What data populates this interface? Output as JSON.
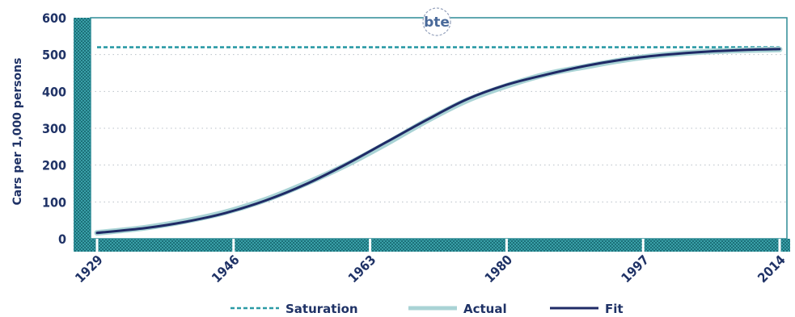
{
  "chart_data": {
    "type": "line",
    "ylabel": "Cars per 1,000 persons",
    "ylim": [
      0,
      600
    ],
    "yticks": [
      0,
      100,
      200,
      300,
      400,
      500,
      600
    ],
    "xlim": [
      1929,
      2014
    ],
    "xticks": [
      1929,
      1946,
      1963,
      1980,
      1997,
      2014
    ],
    "grid": true,
    "legend_position": "bottom",
    "logo_text": "bte",
    "series": [
      {
        "name": "Saturation",
        "color": "#2a9aa5",
        "style": "dashed",
        "x": [
          1929,
          2014
        ],
        "y": [
          520,
          520
        ]
      },
      {
        "name": "Actual",
        "color": "#a9d3d5",
        "style": "solid-wide",
        "x": [
          1929,
          1935,
          1940,
          1945,
          1950,
          1955,
          1960,
          1965,
          1970,
          1975,
          1980,
          1985,
          1990,
          1995,
          2000,
          2005,
          2010,
          2014
        ],
        "y": [
          16,
          30,
          48,
          72,
          106,
          150,
          200,
          258,
          320,
          375,
          415,
          447,
          468,
          487,
          500,
          508,
          512,
          514
        ]
      },
      {
        "name": "Fit",
        "color": "#1f2a66",
        "style": "solid",
        "x": [
          1929,
          1935,
          1940,
          1945,
          1950,
          1955,
          1960,
          1965,
          1970,
          1975,
          1980,
          1985,
          1990,
          1995,
          2000,
          2005,
          2010,
          2014
        ],
        "y": [
          16,
          29,
          46,
          70,
          104,
          148,
          202,
          262,
          322,
          378,
          418,
          446,
          470,
          488,
          500,
          508,
          513,
          515
        ]
      }
    ],
    "legend": [
      "Saturation",
      "Actual",
      "Fit"
    ]
  }
}
